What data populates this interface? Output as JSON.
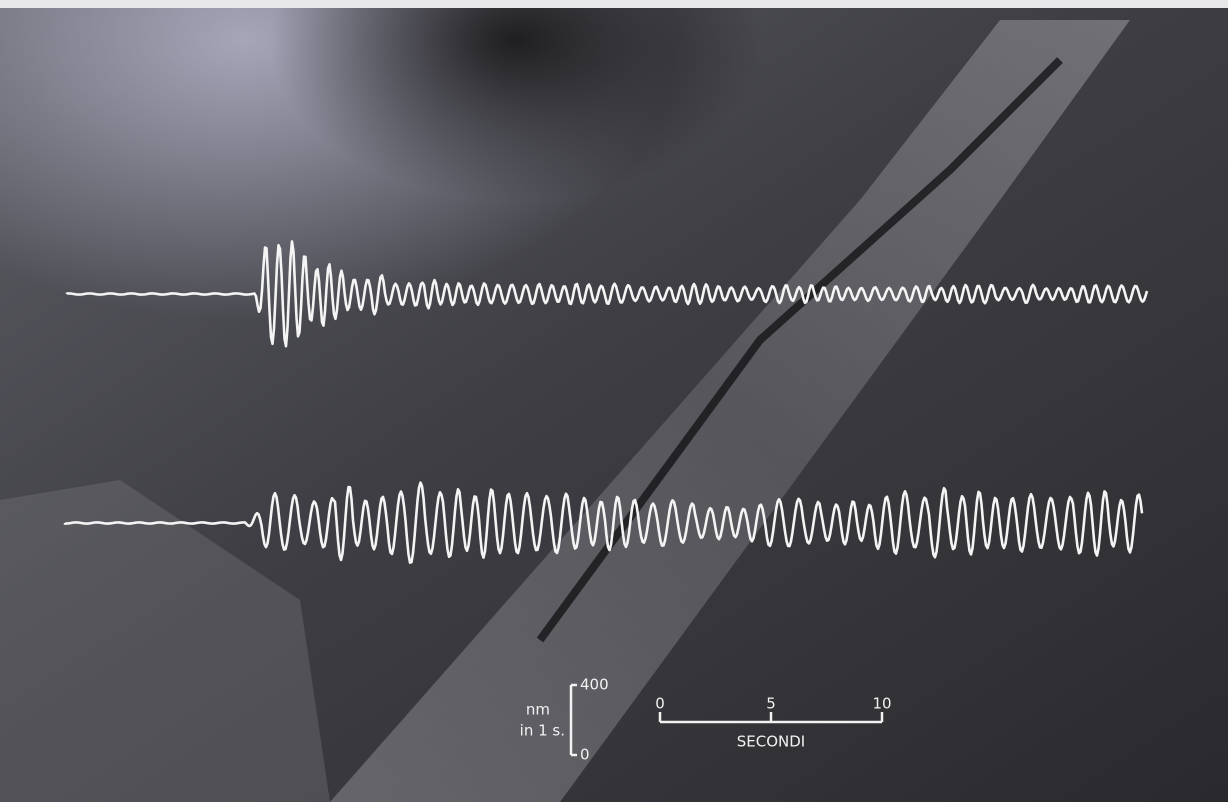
{
  "amplitude_scale": {
    "unit": "nm",
    "unit_time": "in 1 s.",
    "ticks": [
      400,
      0
    ]
  },
  "time_scale": {
    "ticks": [
      0,
      5,
      10
    ],
    "label": "SECONDI"
  }
}
